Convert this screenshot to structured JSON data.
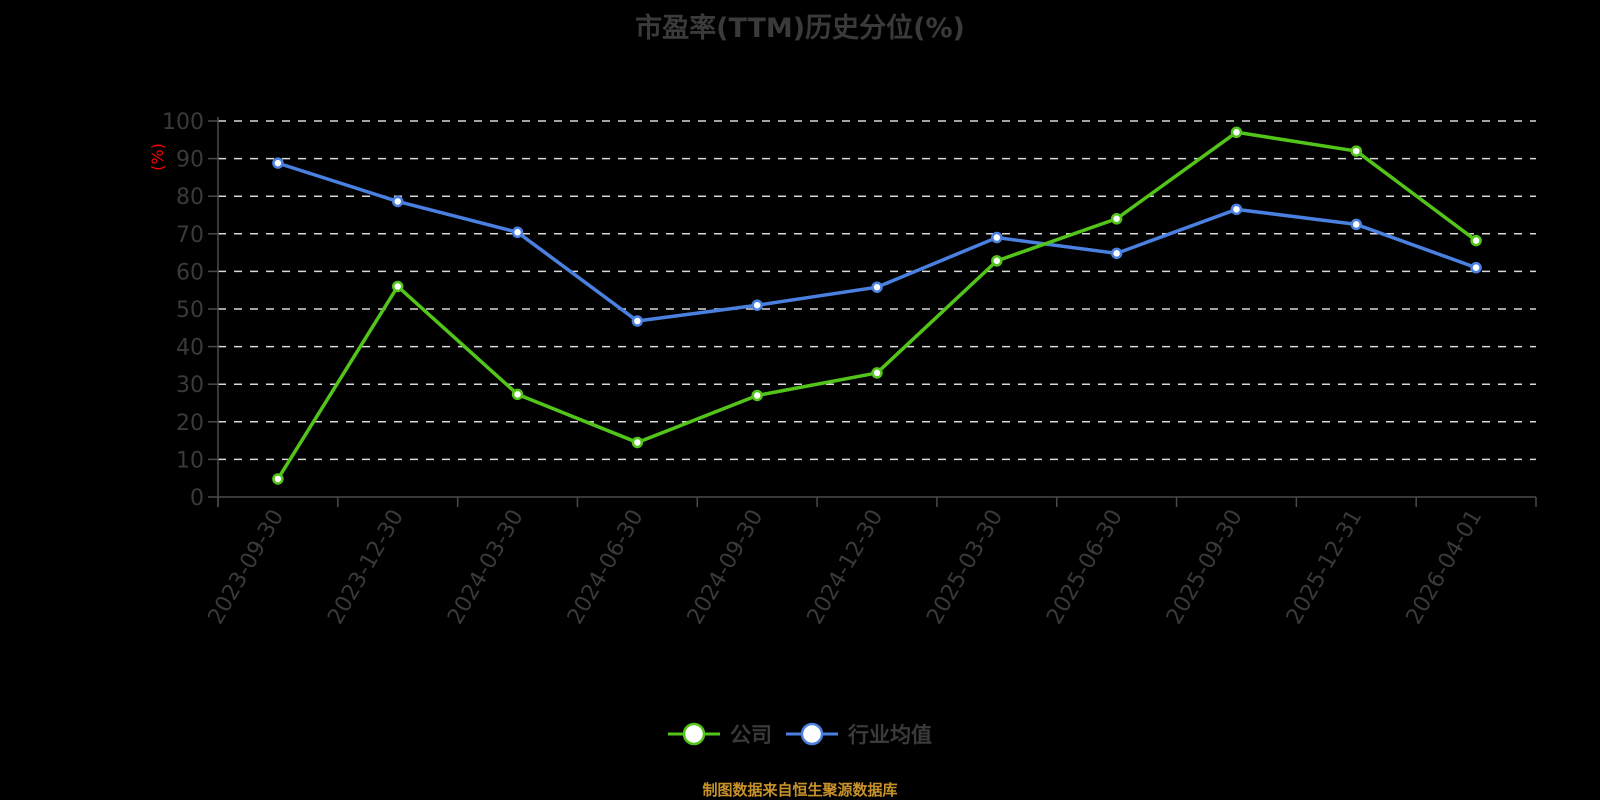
{
  "title": "市盈率(TTM)历史分位(%)",
  "source": "制图数据来自恒生聚源数据库",
  "colors": {
    "background": "#000000",
    "company": "#52c41a",
    "industry": "#4a80e0",
    "axis": "#4a4a4a",
    "grid": "#d9d9d9",
    "tick_label": "#3a3a3a",
    "y_unit": "#ff0000",
    "source": "#c8922a"
  },
  "legend": [
    {
      "name": "公司",
      "color": "#52c41a",
      "icon": "circle-line-icon"
    },
    {
      "name": "行业均值",
      "color": "#4a80e0",
      "icon": "circle-line-icon"
    }
  ],
  "chart_data": {
    "type": "line",
    "title": "市盈率(TTM)历史分位(%)",
    "xlabel": "",
    "ylabel": "(%)",
    "ylim": [
      0,
      100
    ],
    "yticks": [
      0,
      10,
      20,
      30,
      40,
      50,
      60,
      70,
      80,
      90,
      100
    ],
    "grid": true,
    "legend_position": "bottom",
    "categories": [
      "2023-09-30",
      "2023-12-30",
      "2024-03-30",
      "2024-06-30",
      "2024-09-30",
      "2024-12-30",
      "2025-03-30",
      "2025-06-30",
      "2025-09-30",
      "2025-12-31",
      "2026-04-01"
    ],
    "series": [
      {
        "name": "公司",
        "color": "#52c41a",
        "values": [
          4.8,
          56.0,
          27.3,
          14.5,
          27.0,
          33.0,
          62.8,
          74.0,
          97.0,
          92.0,
          68.2
        ]
      },
      {
        "name": "行业均值",
        "color": "#4a80e0",
        "values": [
          88.8,
          78.6,
          70.4,
          46.8,
          51.0,
          55.8,
          69.0,
          64.8,
          76.5,
          72.5,
          61.0
        ]
      }
    ]
  }
}
